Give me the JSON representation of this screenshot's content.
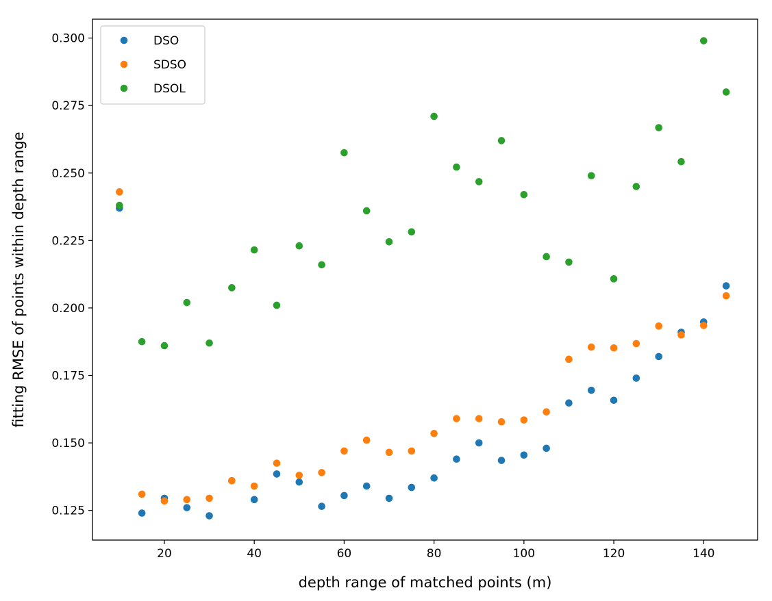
{
  "chart_data": {
    "type": "scatter",
    "title": "",
    "xlabel": "depth range of matched points (m)",
    "ylabel": "fitting RMSE of points within depth range",
    "xlim": [
      4,
      152
    ],
    "ylim": [
      0.114,
      0.307
    ],
    "xticks": [
      20,
      40,
      60,
      80,
      100,
      120,
      140
    ],
    "xtick_labels": [
      "20",
      "40",
      "60",
      "80",
      "100",
      "120",
      "140"
    ],
    "yticks": [
      0.125,
      0.15,
      0.175,
      0.2,
      0.225,
      0.25,
      0.275,
      0.3
    ],
    "ytick_labels": [
      "0.125",
      "0.150",
      "0.175",
      "0.200",
      "0.225",
      "0.250",
      "0.275",
      "0.300"
    ],
    "grid": false,
    "legend_position": "top-left",
    "x": [
      10,
      15,
      20,
      25,
      30,
      35,
      40,
      45,
      50,
      55,
      60,
      65,
      70,
      75,
      80,
      85,
      90,
      95,
      100,
      105,
      110,
      115,
      120,
      125,
      130,
      135,
      140,
      145
    ],
    "series": [
      {
        "name": "DSO",
        "color": "#1f77b4",
        "values": [
          0.237,
          0.124,
          0.1295,
          0.126,
          0.123,
          0.136,
          0.129,
          0.1385,
          0.1355,
          0.1265,
          0.1305,
          0.134,
          0.1295,
          0.1335,
          0.137,
          0.144,
          0.15,
          0.1435,
          0.1455,
          0.148,
          0.1648,
          0.1695,
          0.1658,
          0.174,
          0.182,
          0.191,
          0.1948,
          0.2082
        ]
      },
      {
        "name": "SDSO",
        "color": "#ff7f0e",
        "values": [
          0.243,
          0.131,
          0.1285,
          0.129,
          0.1295,
          0.136,
          0.134,
          0.1425,
          0.138,
          0.139,
          0.147,
          0.151,
          0.1465,
          0.147,
          0.1535,
          0.159,
          0.159,
          0.1578,
          0.1585,
          0.1615,
          0.181,
          0.1855,
          0.1852,
          0.1868,
          0.1933,
          0.19,
          0.1935,
          0.2045
        ]
      },
      {
        "name": "DSOL",
        "color": "#2ca02c",
        "values": [
          0.238,
          0.1875,
          0.186,
          0.202,
          0.187,
          0.2075,
          0.2215,
          0.201,
          0.223,
          0.216,
          0.2575,
          0.236,
          0.2245,
          0.2282,
          0.271,
          0.2522,
          0.2468,
          0.262,
          0.242,
          0.219,
          0.217,
          0.249,
          0.2108,
          0.245,
          0.2668,
          0.2542,
          0.299,
          0.28
        ]
      }
    ]
  }
}
